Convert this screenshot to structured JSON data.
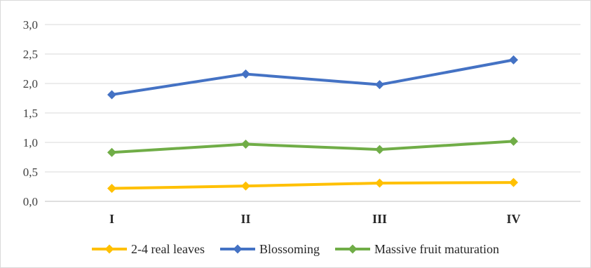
{
  "chart_data": {
    "type": "line",
    "title": "",
    "xlabel": "",
    "ylabel": "",
    "categories": [
      "I",
      "II",
      "III",
      "IV"
    ],
    "y_ticks": [
      "0,0",
      "0,5",
      "1,0",
      "1,5",
      "2,0",
      "2,5",
      "3,0"
    ],
    "ylim": [
      0,
      3
    ],
    "grid": true,
    "legend_position": "bottom",
    "series": [
      {
        "name": "2-4 real leaves",
        "color": "#ffc000",
        "values": [
          0.22,
          0.26,
          0.31,
          0.32
        ]
      },
      {
        "name": "Blossoming",
        "color": "#4472c4",
        "values": [
          1.81,
          2.16,
          1.98,
          2.4
        ]
      },
      {
        "name": "Massive fruit maturation",
        "color": "#70ad47",
        "values": [
          0.83,
          0.97,
          0.88,
          1.02
        ]
      }
    ]
  }
}
